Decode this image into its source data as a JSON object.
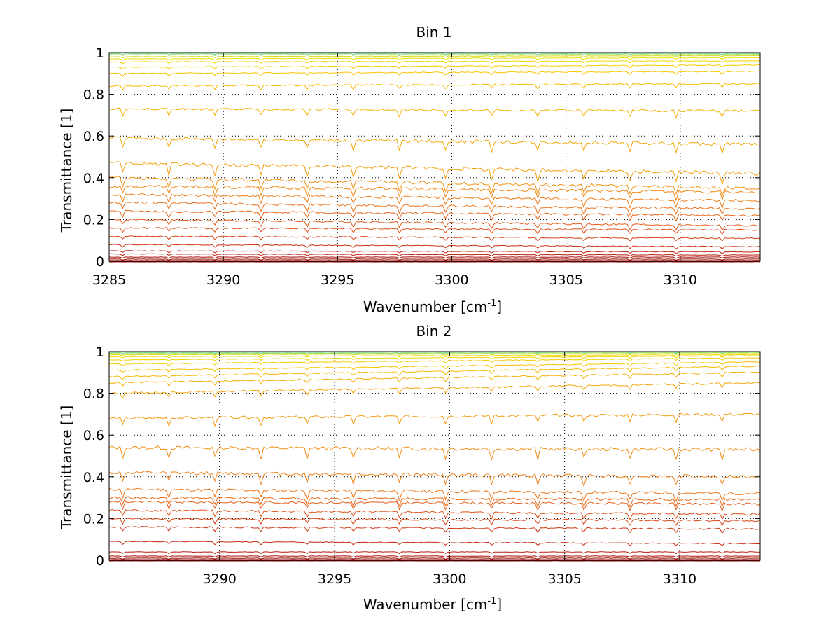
{
  "chart_data": [
    {
      "type": "line",
      "title": "Bin 1",
      "xlabel": "Wavenumber [cm",
      "xlabel_sup": "-1",
      "xlabel_end": "]",
      "ylabel": "Transmittance [1]",
      "xlim": [
        3285,
        3313.5
      ],
      "ylim": [
        0,
        1
      ],
      "xticks": [
        "3285",
        "3290",
        "3295",
        "3300",
        "3305",
        "3310"
      ],
      "xtick_values": [
        3285,
        3290,
        3295,
        3300,
        3305,
        3310
      ],
      "yticks": [
        "0",
        "0.2",
        "0.4",
        "0.6",
        "0.8",
        "1"
      ],
      "ytick_values": [
        0,
        0.2,
        0.4,
        0.6,
        0.8,
        1
      ],
      "grid": true,
      "colormap": [
        "#8b0000",
        "#c0200f",
        "#e0521a",
        "#ee7a1a",
        "#f5a20e",
        "#f7c400",
        "#f0e000",
        "#40d0c0"
      ],
      "series_levels": [
        [
          0.0,
          0.0
        ],
        [
          0.01,
          0.01
        ],
        [
          0.02,
          0.02
        ],
        [
          0.035,
          0.03
        ],
        [
          0.05,
          0.045
        ],
        [
          0.08,
          0.07
        ],
        [
          0.12,
          0.11
        ],
        [
          0.16,
          0.15
        ],
        [
          0.2,
          0.17
        ],
        [
          0.24,
          0.22
        ],
        [
          0.28,
          0.25
        ],
        [
          0.32,
          0.29
        ],
        [
          0.36,
          0.33
        ],
        [
          0.4,
          0.35
        ],
        [
          0.47,
          0.42
        ],
        [
          0.59,
          0.56
        ],
        [
          0.73,
          0.72
        ],
        [
          0.84,
          0.85
        ],
        [
          0.9,
          0.91
        ],
        [
          0.93,
          0.94
        ],
        [
          0.955,
          0.96
        ],
        [
          0.97,
          0.975
        ],
        [
          0.98,
          0.985
        ],
        [
          0.99,
          0.99
        ],
        [
          0.995,
          0.995
        ],
        [
          1.0,
          1.0
        ]
      ]
    },
    {
      "type": "line",
      "title": "Bin 2",
      "xlabel": "Wavenumber [cm",
      "xlabel_sup": "-1",
      "xlabel_end": "]",
      "ylabel": "Transmittance [1]",
      "xlim": [
        3285.2,
        3313.5
      ],
      "ylim": [
        0,
        1
      ],
      "xticks": [
        "3290",
        "3295",
        "3300",
        "3305",
        "3310"
      ],
      "xtick_values": [
        3290,
        3295,
        3300,
        3305,
        3310
      ],
      "yticks": [
        "0",
        "0.2",
        "0.4",
        "0.6",
        "0.8",
        "1"
      ],
      "ytick_values": [
        0,
        0.2,
        0.4,
        0.6,
        0.8,
        1
      ],
      "grid": true,
      "colormap": [
        "#8b0000",
        "#c0200f",
        "#e0521a",
        "#ee7a1a",
        "#f5a20e",
        "#f7c400",
        "#f0e000",
        "#40d0c0"
      ],
      "series_levels": [
        [
          0.0,
          0.0
        ],
        [
          0.01,
          0.01
        ],
        [
          0.02,
          0.02
        ],
        [
          0.04,
          0.04
        ],
        [
          0.09,
          0.08
        ],
        [
          0.16,
          0.15
        ],
        [
          0.2,
          0.19
        ],
        [
          0.24,
          0.22
        ],
        [
          0.28,
          0.27
        ],
        [
          0.3,
          0.29
        ],
        [
          0.34,
          0.32
        ],
        [
          0.42,
          0.4
        ],
        [
          0.54,
          0.53
        ],
        [
          0.68,
          0.7
        ],
        [
          0.8,
          0.85
        ],
        [
          0.85,
          0.9
        ],
        [
          0.88,
          0.93
        ],
        [
          0.91,
          0.95
        ],
        [
          0.94,
          0.97
        ],
        [
          0.96,
          0.98
        ],
        [
          0.975,
          0.985
        ],
        [
          0.985,
          0.99
        ],
        [
          0.99,
          0.995
        ],
        [
          0.995,
          0.998
        ],
        [
          1.0,
          1.0
        ]
      ]
    }
  ]
}
